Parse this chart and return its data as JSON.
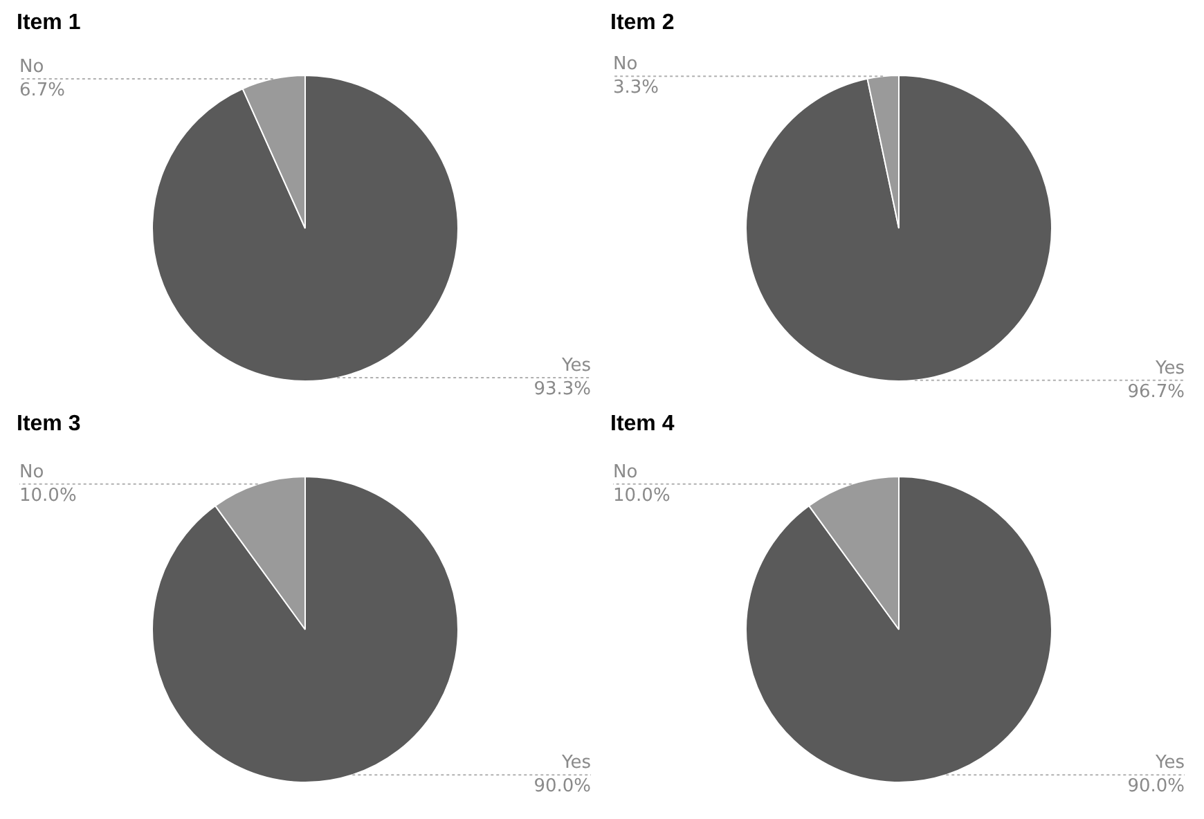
{
  "chart_data": [
    {
      "type": "pie",
      "title": "Item 1",
      "categories": [
        "Yes",
        "No"
      ],
      "values": [
        93.3,
        6.7
      ],
      "colors": [
        "#5a5a5a",
        "#9a9a9a"
      ],
      "value_labels": [
        "93.3%",
        "6.7%"
      ],
      "legend": false
    },
    {
      "type": "pie",
      "title": "Item 2",
      "categories": [
        "Yes",
        "No"
      ],
      "values": [
        96.7,
        3.3
      ],
      "colors": [
        "#5a5a5a",
        "#9a9a9a"
      ],
      "value_labels": [
        "96.7%",
        "3.3%"
      ],
      "legend": false
    },
    {
      "type": "pie",
      "title": "Item 3",
      "categories": [
        "Yes",
        "No"
      ],
      "values": [
        90.0,
        10.0
      ],
      "colors": [
        "#5a5a5a",
        "#9a9a9a"
      ],
      "value_labels": [
        "90.0%",
        "10.0%"
      ],
      "legend": false
    },
    {
      "type": "pie",
      "title": "Item 4",
      "categories": [
        "Yes",
        "No"
      ],
      "values": [
        90.0,
        10.0
      ],
      "colors": [
        "#5a5a5a",
        "#9a9a9a"
      ],
      "value_labels": [
        "90.0%",
        "10.0%"
      ],
      "legend": false
    }
  ]
}
